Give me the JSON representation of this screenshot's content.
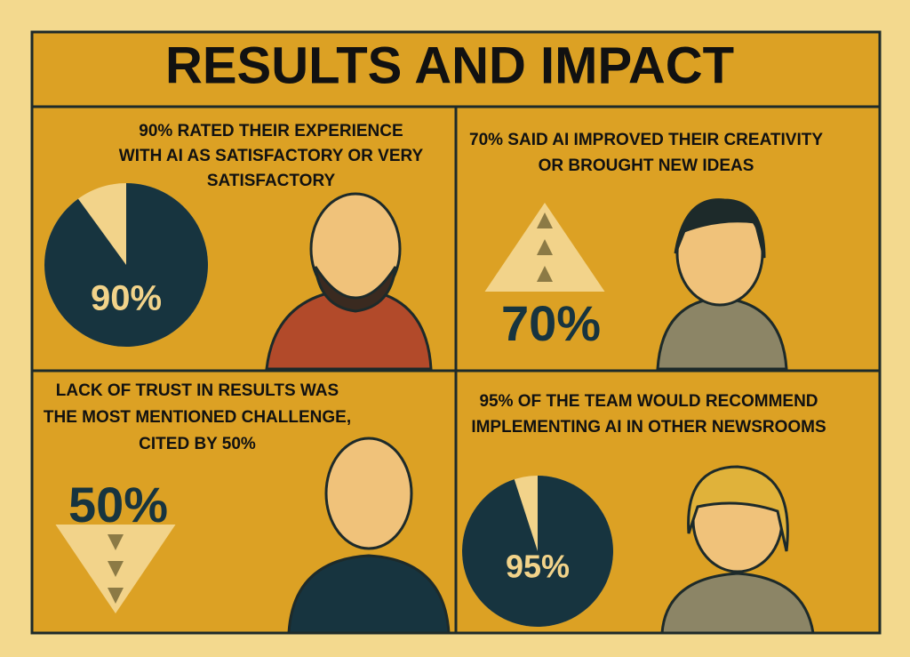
{
  "title": "RESULTS AND IMPACT",
  "panels": [
    {
      "lines": [
        "90% RATED THEIR EXPERIENCE",
        "WITH AI AS SATISFACTORY OR VERY",
        "SATISFACTORY"
      ],
      "value": 90,
      "value_label": "90%",
      "shape": "pie"
    },
    {
      "lines": [
        "70% SAID AI IMPROVED THEIR CREATIVITY",
        "OR BROUGHT NEW IDEAS"
      ],
      "value": 70,
      "value_label": "70%",
      "shape": "triangle-up"
    },
    {
      "lines": [
        "LACK OF TRUST IN RESULTS WAS",
        "THE MOST MENTIONED CHALLENGE,",
        "CITED BY 50%"
      ],
      "value": 50,
      "value_label": "50%",
      "shape": "triangle-down"
    },
    {
      "lines": [
        "95% OF THE TEAM WOULD RECOMMEND",
        "IMPLEMENTING AI IN OTHER NEWSROOMS"
      ],
      "value": 95,
      "value_label": "95%",
      "shape": "pie"
    }
  ]
}
